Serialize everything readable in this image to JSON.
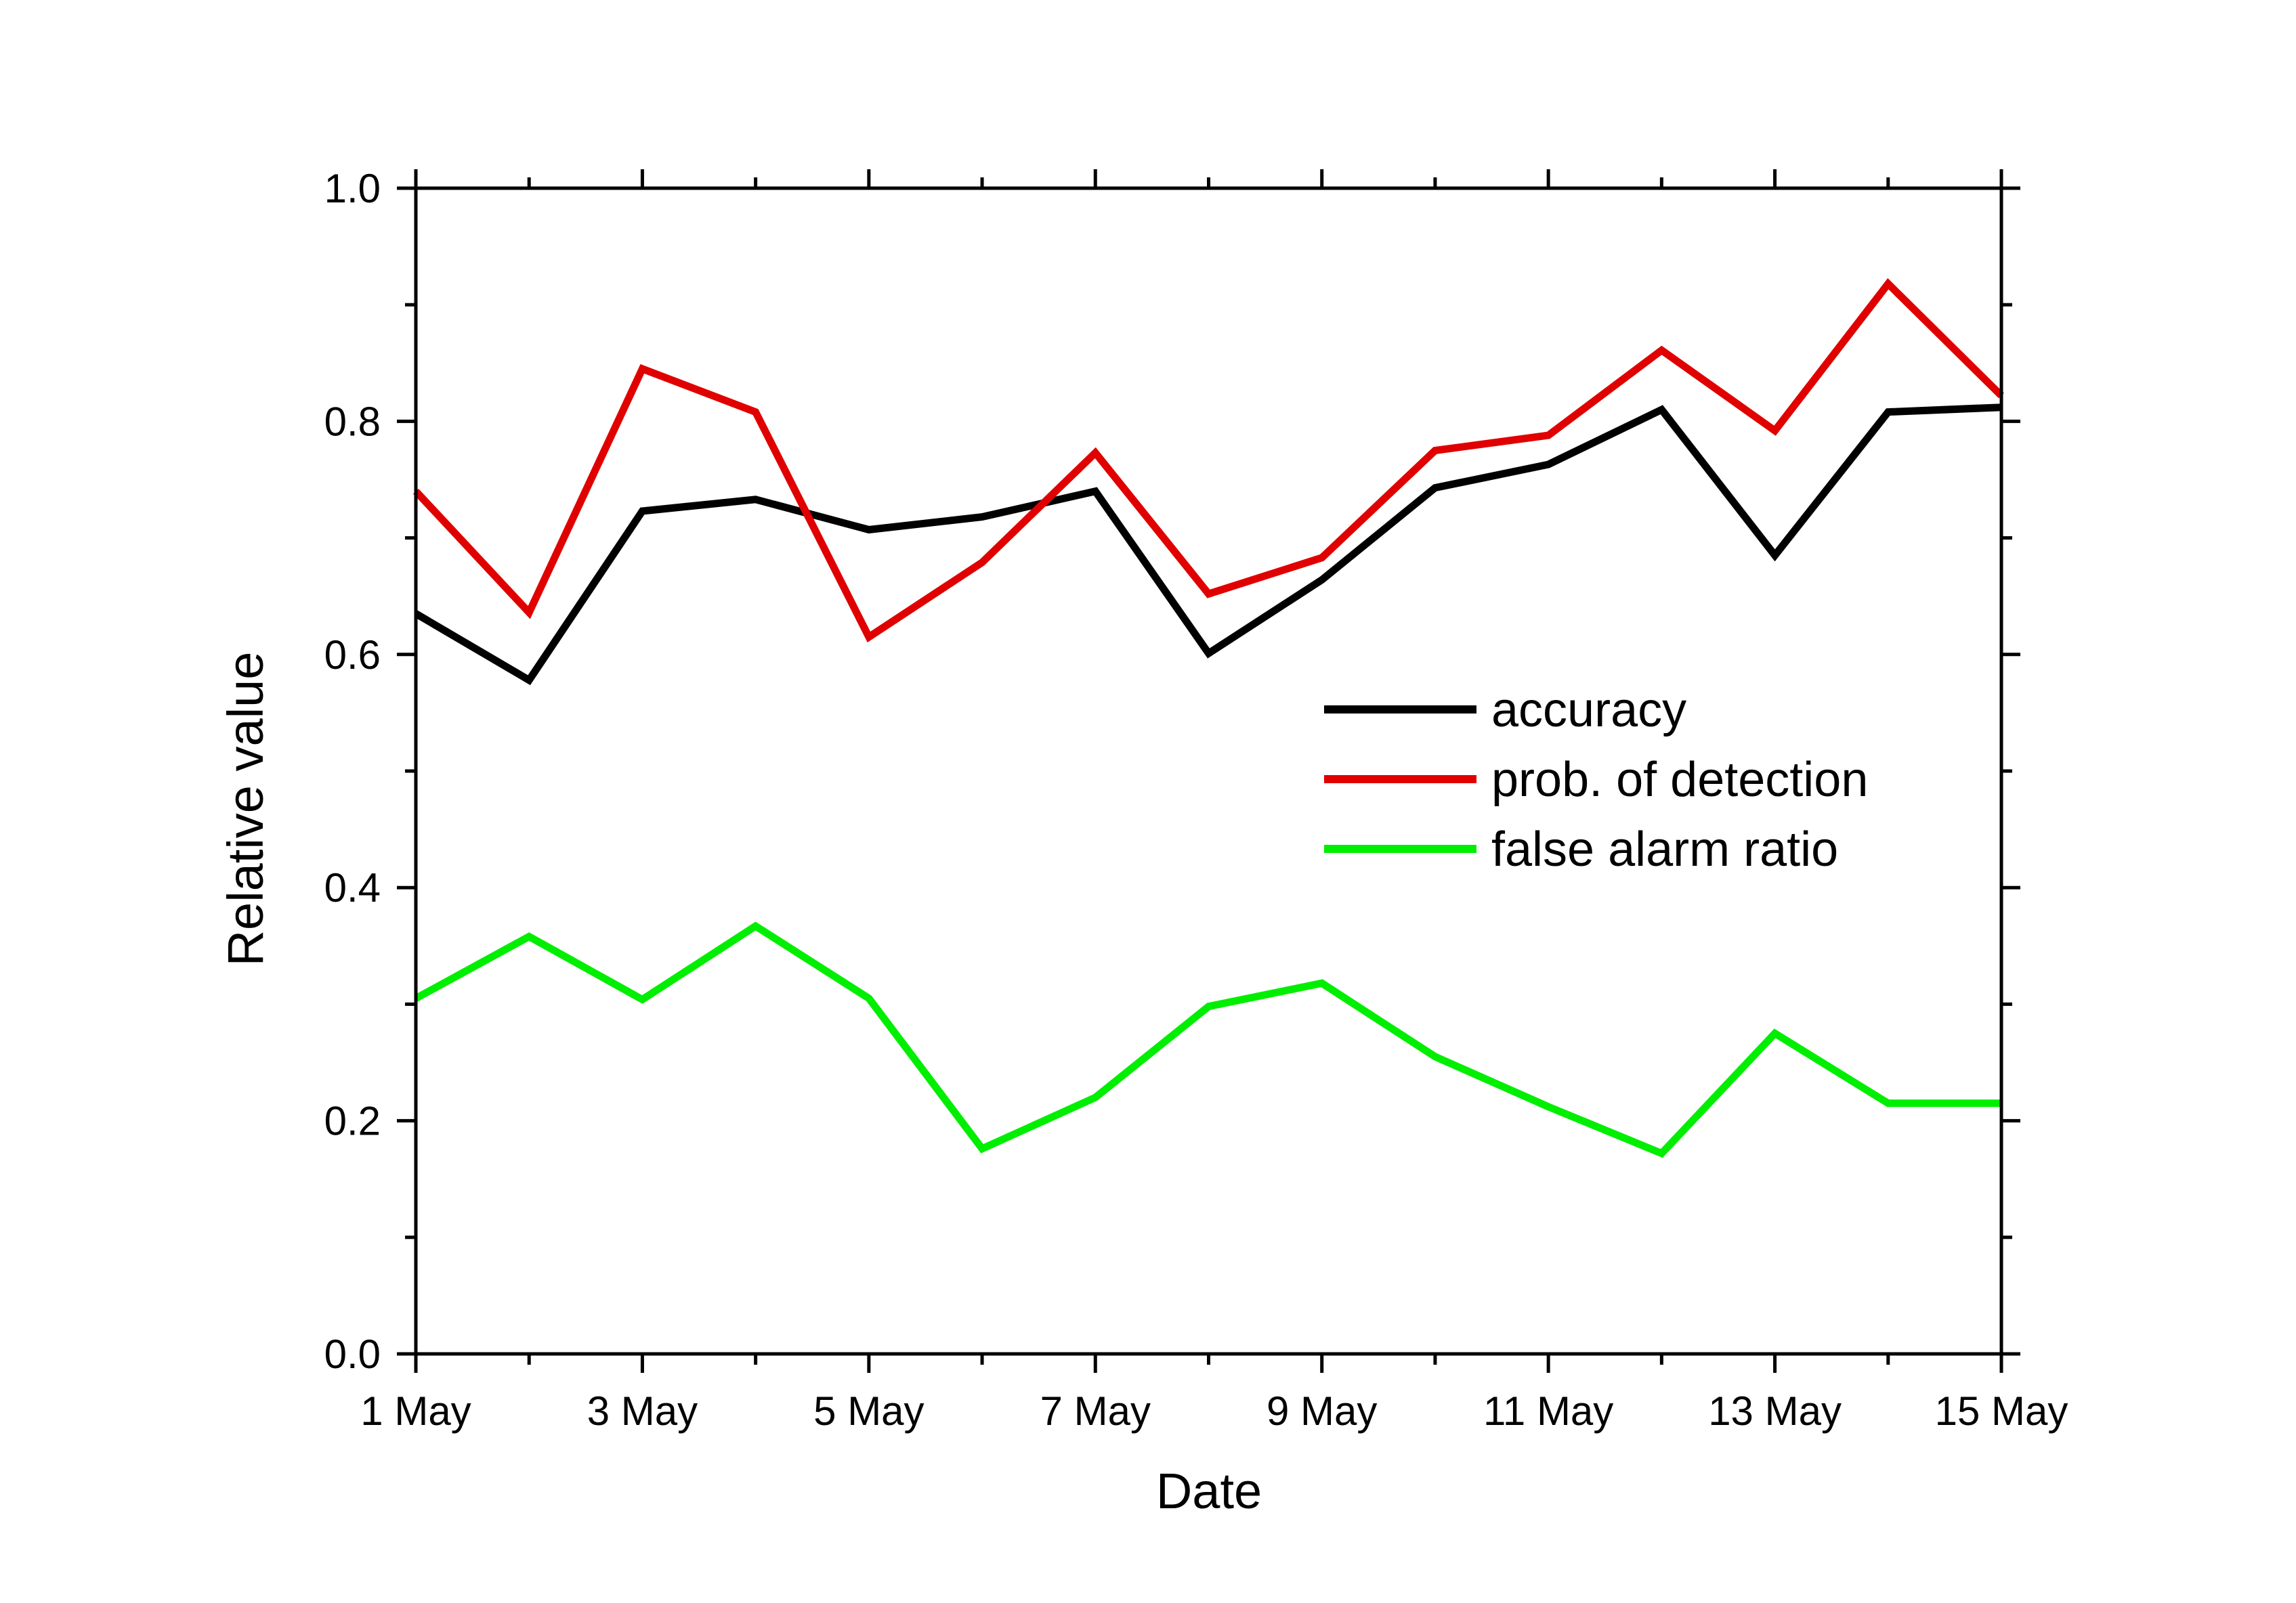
{
  "chart_data": {
    "type": "line",
    "title": "",
    "xlabel": "Date",
    "ylabel": "Relative value",
    "x": [
      "1 May",
      "2 May",
      "3 May",
      "4 May",
      "5 May",
      "6 May",
      "7 May",
      "8 May",
      "9 May",
      "10 May",
      "11 May",
      "12 May",
      "13 May",
      "14 May",
      "15 May"
    ],
    "x_tick_labels": [
      "1 May",
      "3 May",
      "5 May",
      "7 May",
      "9 May",
      "11 May",
      "13 May",
      "15 May"
    ],
    "y_tick_labels": [
      "0.0",
      "0.2",
      "0.4",
      "0.6",
      "0.8",
      "1.0"
    ],
    "ylim": [
      0,
      1
    ],
    "grid": false,
    "legend_position": "right-center",
    "series": [
      {
        "name": "accuracy",
        "color": "#000000",
        "values": [
          0.635,
          0.578,
          0.723,
          0.733,
          0.707,
          0.718,
          0.74,
          0.601,
          0.664,
          0.743,
          0.763,
          0.81,
          0.685,
          0.808,
          0.812
        ]
      },
      {
        "name": "prob. of detection",
        "color": "#e00000",
        "values": [
          0.74,
          0.636,
          0.845,
          0.808,
          0.615,
          0.679,
          0.773,
          0.652,
          0.683,
          0.775,
          0.788,
          0.861,
          0.792,
          0.918,
          0.822
        ]
      },
      {
        "name": "false alarm ratio",
        "color": "#00ee00",
        "values": [
          0.305,
          0.358,
          0.304,
          0.367,
          0.305,
          0.176,
          0.22,
          0.298,
          0.318,
          0.255,
          0.212,
          0.172,
          0.275,
          0.215,
          0.215
        ]
      }
    ]
  }
}
